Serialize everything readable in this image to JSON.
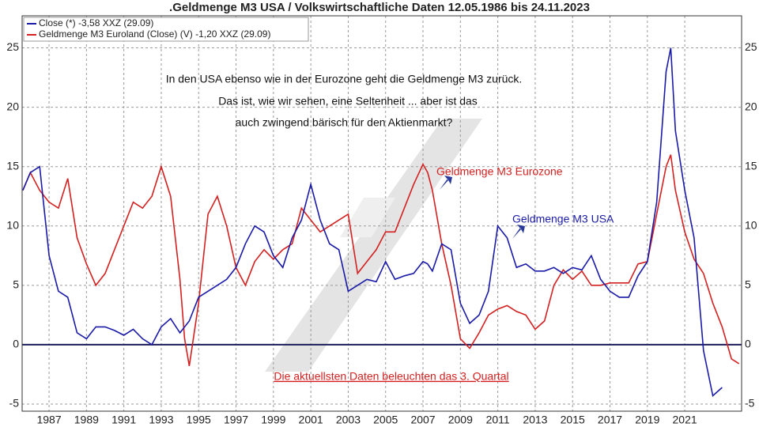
{
  "chart_data": {
    "type": "line",
    "title": ".Geldmenge M3 USA / Volkswirtschaftliche Daten 12.05.1986 bis 24.11.2023",
    "annotations": [
      "In den USA ebenso wie in der Eurozone geht die Geldmenge M3 zurück.",
      "Das ist, wie wir sehen, eine Seltenheit ... aber ist das",
      "auch zwingend bärisch für den Aktienmarkt?",
      "Geldmenge M3 Eurozone",
      "Geldmenge M3 USA",
      "Die aktuellsten Daten beleuchten das 3. Quartal"
    ],
    "x": [
      1985.6,
      1986.0,
      1986.5,
      1987.0,
      1987.5,
      1988.0,
      1988.5,
      1989.0,
      1989.5,
      1990.0,
      1990.5,
      1991.0,
      1991.5,
      1992.0,
      1992.5,
      1993.0,
      1993.5,
      1994.0,
      1994.25,
      1994.5,
      1995.0,
      1995.5,
      1996.0,
      1996.5,
      1997.0,
      1997.5,
      1998.0,
      1998.5,
      1999.0,
      1999.5,
      2000.0,
      2000.5,
      2001.0,
      2001.5,
      2002.0,
      2002.5,
      2003.0,
      2003.5,
      2004.0,
      2004.5,
      2005.0,
      2005.5,
      2006.0,
      2006.5,
      2007.0,
      2007.25,
      2007.5,
      2008.0,
      2008.5,
      2009.0,
      2009.5,
      2010.0,
      2010.5,
      2011.0,
      2011.5,
      2012.0,
      2012.5,
      2013.0,
      2013.5,
      2014.0,
      2014.5,
      2015.0,
      2015.5,
      2016.0,
      2016.5,
      2017.0,
      2017.5,
      2018.0,
      2018.5,
      2019.0,
      2019.5,
      2020.0,
      2020.25,
      2020.5,
      2021.0,
      2021.5,
      2022.0,
      2022.5,
      2023.0,
      2023.5,
      2023.9
    ],
    "series": [
      {
        "name": "Close (*) -3,58 XXZ (29.09)",
        "color": "#1a1aa8",
        "values": [
          13,
          14.5,
          15,
          7.5,
          4.5,
          4,
          1,
          0.5,
          1.5,
          1.5,
          1.2,
          0.8,
          1.3,
          0.5,
          0,
          1.5,
          2.2,
          1,
          1.5,
          2,
          4,
          4.5,
          5,
          5.5,
          6.5,
          8.5,
          10,
          9.5,
          7.5,
          6.5,
          9,
          10.5,
          13.5,
          10.5,
          8.5,
          8,
          4.5,
          5,
          5.5,
          5.3,
          7,
          5.5,
          5.8,
          6,
          7,
          6.8,
          6.2,
          8.5,
          8,
          3.5,
          1.8,
          2.5,
          4.5,
          10,
          9,
          6.5,
          6.8,
          6.2,
          6.2,
          6.5,
          6,
          6.5,
          6.3,
          7.5,
          5.5,
          4.5,
          4,
          4,
          5.8,
          7,
          12,
          23,
          25,
          18,
          13,
          9,
          -0.5,
          -4.3,
          -3.6,
          null,
          null
        ]
      },
      {
        "name": "Geldmenge M3 Euroland (Close) (V) -1,20 XXZ (29.09)",
        "color": "#d42020",
        "values": [
          13,
          14.5,
          13,
          12,
          11.5,
          14,
          9,
          6.8,
          5,
          6,
          8,
          10,
          12,
          11.5,
          12.5,
          15,
          12.5,
          5.5,
          0.5,
          -1.8,
          3.5,
          11,
          12.5,
          10,
          6.5,
          5,
          7,
          8,
          7.2,
          8,
          8.5,
          11.5,
          10.5,
          9.5,
          10,
          10.5,
          11,
          6,
          7,
          8,
          9.5,
          9.5,
          11.5,
          13.5,
          15.2,
          14.5,
          13,
          8.5,
          5,
          0.5,
          -0.3,
          1,
          2.5,
          3,
          3.3,
          2.8,
          2.5,
          1.3,
          2,
          5,
          6.3,
          5.5,
          6.2,
          5,
          5,
          5.2,
          5.2,
          5.2,
          6.8,
          7,
          11,
          15,
          16,
          13,
          9.5,
          7.2,
          6,
          3.5,
          1.5,
          -1.2,
          -1.6
        ]
      }
    ],
    "xlim": [
      1985.56,
      2024.04
    ],
    "xticks": [
      1987,
      1989,
      1991,
      1993,
      1995,
      1997,
      1999,
      2001,
      2003,
      2005,
      2007,
      2009,
      2011,
      2013,
      2015,
      2017,
      2019,
      2021
    ],
    "ylim": [
      -5.6,
      27.7
    ],
    "yticks": [
      -5,
      0,
      5,
      10,
      15,
      20,
      25
    ],
    "reference_line": 0,
    "grid": true,
    "legend": "top-left"
  }
}
